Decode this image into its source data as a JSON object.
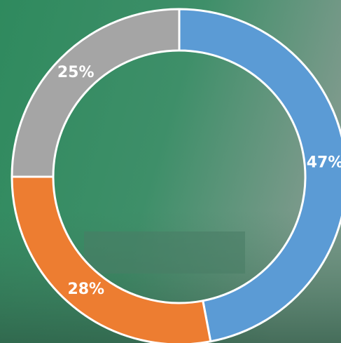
{
  "chart_data": {
    "type": "donut",
    "categories": [
      null,
      null,
      null
    ],
    "values": [
      47,
      28,
      25
    ],
    "value_labels": [
      "47%",
      "28%",
      "25%"
    ],
    "colors": [
      "#5b9bd5",
      "#ed7d31",
      "#a5a5a5"
    ]
  }
}
